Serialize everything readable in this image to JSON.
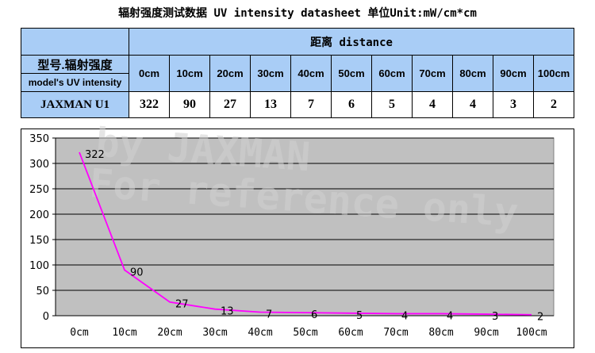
{
  "title": "辐射强度测试数据 UV intensity datasheet 单位Unit:mW/cm*cm",
  "table": {
    "header_distance": "距离 distance",
    "model_label_cn": "型号.辐射强度",
    "model_label_en": "model's UV intensity",
    "row_name": "JAXMAN U1"
  },
  "watermark": {
    "line1": "by JAXMAN",
    "line2": "For reference only"
  },
  "chart_data": {
    "type": "line",
    "categories": [
      "0cm",
      "10cm",
      "20cm",
      "30cm",
      "40cm",
      "50cm",
      "60cm",
      "70cm",
      "80cm",
      "90cm",
      "100cm"
    ],
    "series": [
      {
        "values": [
          322,
          90,
          27,
          13,
          7,
          6,
          5,
          4,
          4,
          3,
          2
        ],
        "color": "#ff00ff"
      }
    ],
    "ylim": [
      0,
      350
    ],
    "yticks": [
      0,
      50,
      100,
      150,
      200,
      250,
      300,
      350
    ],
    "plot_background": "#c0c0c0",
    "grid": true,
    "data_labels": true,
    "legend": "none"
  }
}
